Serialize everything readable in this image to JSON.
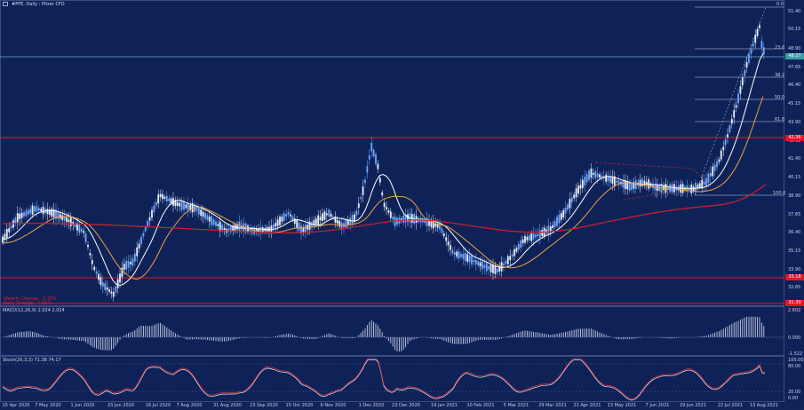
{
  "window": {
    "symbol_title": "#PFE, Daily : Pfizer CFD"
  },
  "colors": {
    "background": "#0f2258",
    "candle_up": "#6fa8ff",
    "candle_down": "#e9f0ff",
    "ma_fast": "#ffffff",
    "ma_mid": "#f0a040",
    "ma_slow": "#d0202a",
    "support_line": "#e01828",
    "fib_line": "#c8d0e8",
    "price_line": "#5fb0c0",
    "macd_hist": "#c8d0e8",
    "stoch_main": "#e03030",
    "stoch_signal": "#e8ecf8"
  },
  "price_axis": {
    "labels": [
      "51.40",
      "50.15",
      "48.90",
      "47.65",
      "46.40",
      "45.15",
      "43.90",
      "42.65",
      "41.40",
      "40.15",
      "38.90",
      "37.65",
      "36.40",
      "35.15",
      "33.90",
      "32.65"
    ],
    "current_price": "48.27",
    "resistance_price": "42.36",
    "support_price": "33.18",
    "lower_price": "31.30"
  },
  "fibonacci": {
    "levels": [
      "0.0",
      "23.6",
      "38.2",
      "50.0",
      "61.8",
      "100.0"
    ]
  },
  "legend": {
    "weekly_change": "Weekly Change: -3.25%",
    "daily_change": "Daily Change: -0.55%"
  },
  "macd": {
    "title": "MACD(12,26,9) 2.024 2.024",
    "axis_labels": [
      "2.602",
      "0.000",
      "-1.522"
    ]
  },
  "stochastic": {
    "title": "Stoch(20,3,3) 71.38 74.17",
    "axis_labels": [
      "100.00",
      "80.00",
      "20.00",
      "0.00"
    ]
  },
  "time_axis": {
    "labels": [
      "15 Apr 2020",
      "7 May 2020",
      "1 Jun 2020",
      "23 Jun 2020",
      "16 Jul 2020",
      "7 Aug 2020",
      "31 Aug 2020",
      "23 Sep 2020",
      "15 Oct 2020",
      "6 Nov 2020",
      "1 Dec 2020",
      "23 Dec 2020",
      "19 Jan 2021",
      "10 Feb 2021",
      "5 Mar 2021",
      "29 Mar 2021",
      "21 Apr 2021",
      "13 May 2021",
      "7 Jun 2021",
      "29 Jun 2021",
      "22 Jul 2021",
      "13 Aug 2021"
    ]
  }
}
